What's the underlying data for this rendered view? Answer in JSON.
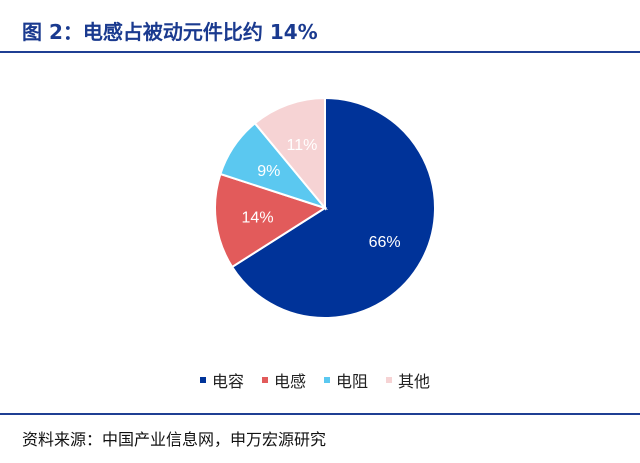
{
  "title": "图 2：电感占被动元件比约 14%",
  "source": "资料来源：中国产业信息网，申万宏源研究",
  "chart_data": {
    "type": "pie",
    "title": "",
    "slices": [
      {
        "label": "电容",
        "value": 66,
        "text": "66%",
        "color": "#003399"
      },
      {
        "label": "电感",
        "value": 14,
        "text": "14%",
        "color": "#e25b5b"
      },
      {
        "label": "电阻",
        "value": 9,
        "text": "9%",
        "color": "#5bc8f0"
      },
      {
        "label": "其他",
        "value": 11,
        "text": "11%",
        "color": "#f6d3d4"
      }
    ],
    "legend_position": "bottom"
  }
}
